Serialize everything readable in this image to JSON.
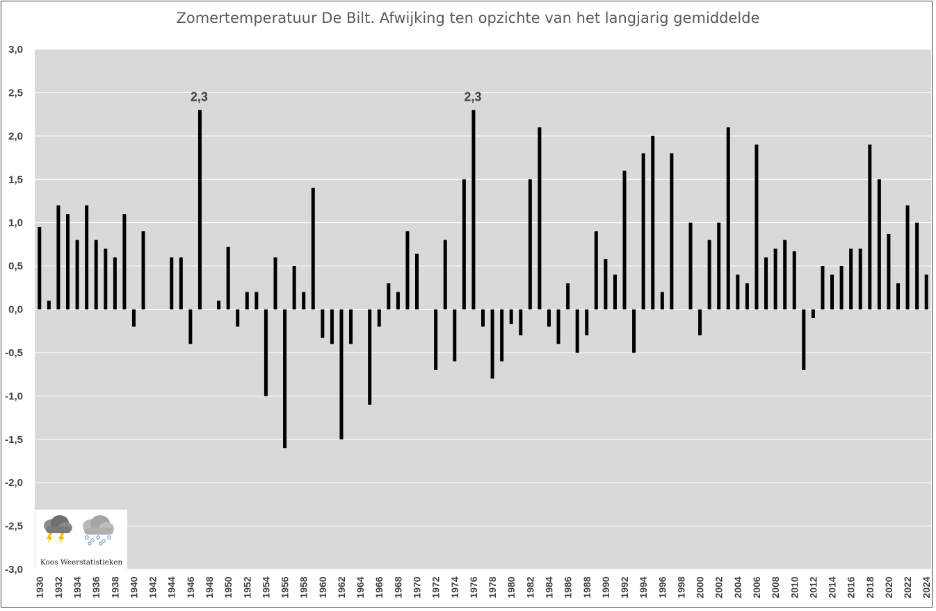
{
  "chart_data": {
    "type": "bar",
    "title": "Zomertemperatuur De Bilt. Afwijking ten opzichte van het langjarig gemiddelde",
    "xlabel": "",
    "ylabel": "",
    "ylim": [
      -3.0,
      3.0
    ],
    "yticks": [
      "3,0",
      "2,5",
      "2,0",
      "1,5",
      "1,0",
      "0,5",
      "0,0",
      "-0,5",
      "-1,0",
      "-1,5",
      "-2,0",
      "-2,5",
      "-3,0"
    ],
    "ytick_values": [
      3.0,
      2.5,
      2.0,
      1.5,
      1.0,
      0.5,
      0.0,
      -0.5,
      -1.0,
      -1.5,
      -2.0,
      -2.5,
      -3.0
    ],
    "grid": true,
    "bar_color": "#000000",
    "plot_background": "#d9d9d9",
    "x_first_year": 1930,
    "x_last_year": 2024,
    "xtick_step": 2,
    "categories": [
      1930,
      1931,
      1932,
      1933,
      1934,
      1935,
      1936,
      1937,
      1938,
      1939,
      1940,
      1941,
      1942,
      1943,
      1944,
      1945,
      1946,
      1947,
      1948,
      1949,
      1950,
      1951,
      1952,
      1953,
      1954,
      1955,
      1956,
      1957,
      1958,
      1959,
      1960,
      1961,
      1962,
      1963,
      1964,
      1965,
      1966,
      1967,
      1968,
      1969,
      1970,
      1971,
      1972,
      1973,
      1974,
      1975,
      1976,
      1977,
      1978,
      1979,
      1980,
      1981,
      1982,
      1983,
      1984,
      1985,
      1986,
      1987,
      1988,
      1989,
      1990,
      1991,
      1992,
      1993,
      1994,
      1995,
      1996,
      1997,
      1998,
      1999,
      2000,
      2001,
      2002,
      2003,
      2004,
      2005,
      2006,
      2007,
      2008,
      2009,
      2010,
      2011,
      2012,
      2013,
      2014,
      2015,
      2016,
      2017,
      2018,
      2019,
      2020,
      2021,
      2022,
      2023,
      2024
    ],
    "values": [
      0.95,
      0.1,
      1.2,
      1.1,
      0.8,
      1.2,
      0.8,
      0.7,
      0.6,
      1.1,
      -0.2,
      0.9,
      null,
      null,
      0.6,
      0.6,
      -0.4,
      2.3,
      null,
      0.1,
      0.72,
      -0.2,
      0.2,
      0.2,
      -1.0,
      0.6,
      -1.6,
      0.5,
      0.2,
      1.4,
      -0.33,
      -0.4,
      -1.5,
      -0.4,
      null,
      -1.1,
      -0.2,
      0.3,
      0.2,
      0.9,
      0.64,
      null,
      -0.7,
      0.8,
      -0.6,
      1.5,
      2.3,
      -0.2,
      -0.8,
      -0.6,
      -0.17,
      -0.3,
      1.5,
      2.1,
      -0.2,
      -0.4,
      0.3,
      -0.5,
      -0.3,
      0.9,
      0.58,
      0.4,
      1.6,
      -0.5,
      1.8,
      2.0,
      0.2,
      1.8,
      null,
      1.0,
      -0.3,
      0.8,
      1.0,
      2.1,
      0.4,
      0.3,
      1.9,
      0.6,
      0.7,
      0.8,
      0.67,
      -0.7,
      -0.1,
      0.5,
      0.4,
      0.5,
      0.7,
      0.7,
      1.9,
      1.5,
      0.87,
      0.3,
      1.2,
      1.0,
      0.4
    ],
    "annotations": [
      {
        "year": 1947,
        "text": "2,3"
      },
      {
        "year": 1976,
        "text": "2,3"
      }
    ]
  },
  "logo": {
    "text": "Koos Weerstatistieken",
    "icons": [
      "thunderstorm-cloud-icon",
      "snow-cloud-icon"
    ]
  }
}
